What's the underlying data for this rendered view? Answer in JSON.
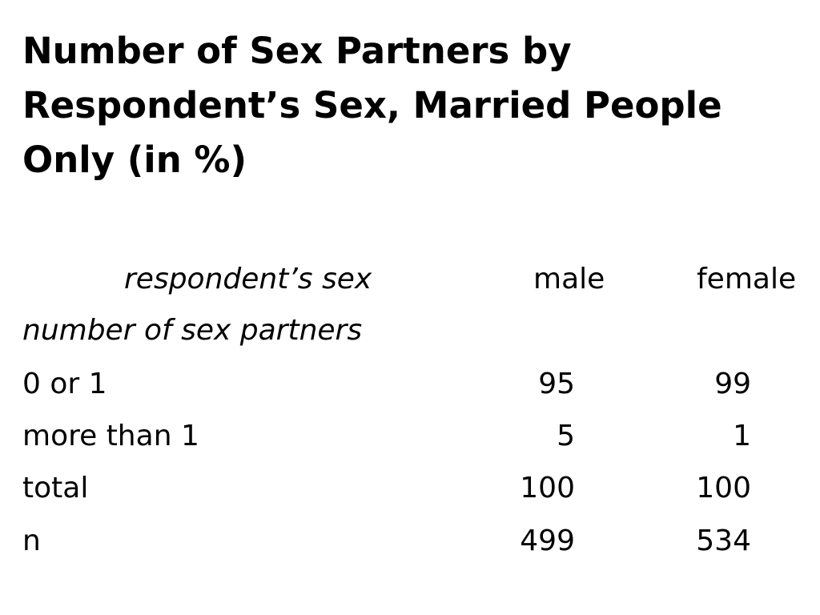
{
  "slide": {
    "title": "Number of Sex Partners by Respondent’s Sex, Married People Only (in %)"
  },
  "table": {
    "column_group_label": "respondent’s sex",
    "columns": [
      "male",
      "female"
    ],
    "row_group_label": "number of sex partners",
    "rows": [
      {
        "label": "0 or 1",
        "male": "95",
        "female": "99"
      },
      {
        "label": "more than 1",
        "male": "5",
        "female": "1"
      },
      {
        "label": "total",
        "male": "100",
        "female": "100"
      },
      {
        "label": "n",
        "male": "499",
        "female": "534"
      }
    ]
  }
}
